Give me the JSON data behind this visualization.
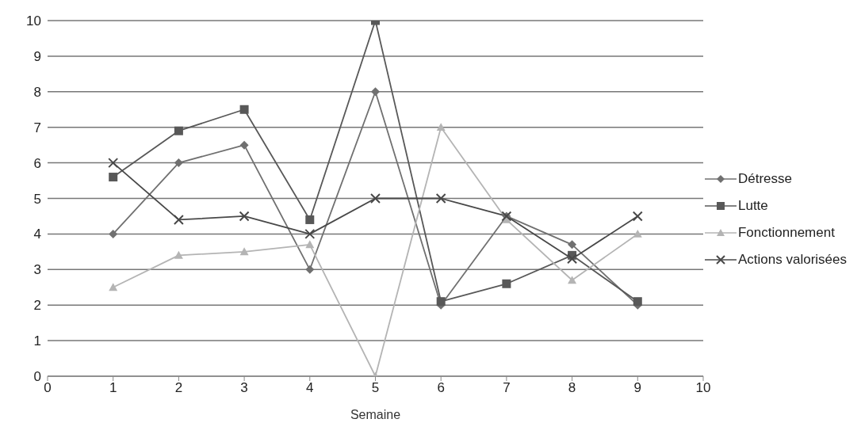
{
  "chart_data": {
    "type": "line",
    "xlabel": "Semaine",
    "x": [
      1,
      2,
      3,
      4,
      5,
      6,
      7,
      8,
      9
    ],
    "series": [
      {
        "name": "Détresse",
        "color": "#707070",
        "marker": "diamond",
        "values": [
          4,
          6,
          6.5,
          3,
          8,
          2,
          4.5,
          3.7,
          2
        ]
      },
      {
        "name": "Lutte",
        "color": "#585858",
        "marker": "square",
        "values": [
          5.6,
          6.9,
          7.5,
          4.4,
          10,
          2.1,
          2.6,
          3.4,
          2.1
        ]
      },
      {
        "name": "Fonctionnement",
        "color": "#b4b4b4",
        "marker": "triangle",
        "values": [
          2.5,
          3.4,
          3.5,
          3.7,
          0,
          7,
          4.4,
          2.7,
          4
        ]
      },
      {
        "name": "Actions valorisées",
        "color": "#484848",
        "marker": "cross",
        "values": [
          6,
          4.4,
          4.5,
          4,
          5,
          5,
          4.5,
          3.3,
          4.5
        ]
      }
    ],
    "xlim": [
      0,
      10
    ],
    "xticks": [
      0,
      1,
      2,
      3,
      4,
      5,
      6,
      7,
      8,
      9,
      10
    ],
    "ylim": [
      0,
      10
    ],
    "yticks": [
      0,
      1,
      2,
      3,
      4,
      5,
      6,
      7,
      8,
      9,
      10
    ],
    "grid": "y",
    "legend": "right",
    "line_style": "solid"
  }
}
